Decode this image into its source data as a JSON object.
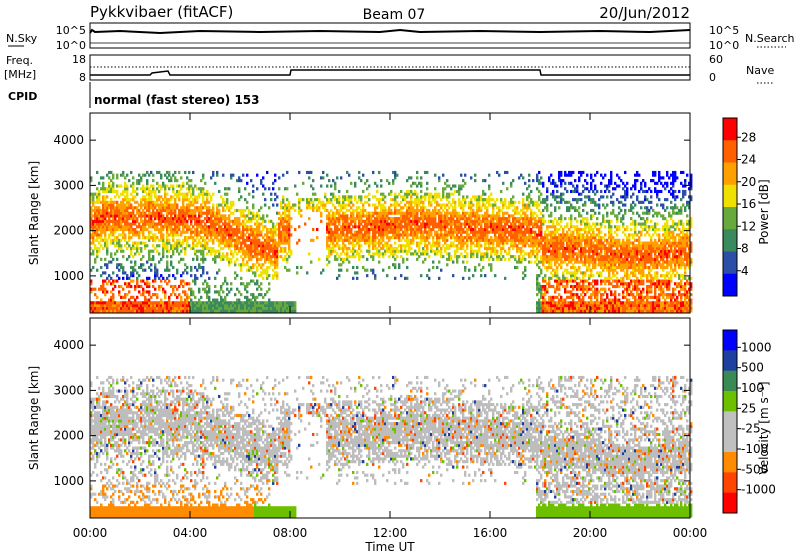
{
  "header": {
    "station": "Pykkvibaer (fitACF)",
    "beam": "Beam 07",
    "date": "20/Jun/2012"
  },
  "nsky_panel": {
    "left_label": "N.Sky",
    "left_ticks": [
      "10^5",
      "10^0"
    ],
    "right_label": "N.Search",
    "right_ticks": [
      "10^5",
      "10^0"
    ]
  },
  "freq_panel": {
    "left_label_top": "Freq.",
    "left_label_bottom": "[MHz]",
    "left_ticks": [
      "18",
      "8"
    ],
    "right_label": "Nave",
    "right_ticks": [
      "60",
      "0"
    ]
  },
  "cpid": {
    "label": "CPID",
    "text": "normal (fast stereo) 153"
  },
  "colors": {
    "power": [
      "#0000ff",
      "#2b4fa6",
      "#3b8a5e",
      "#67a93c",
      "#f0e000",
      "#ffa000",
      "#ff6000",
      "#ff0000"
    ],
    "velocity": [
      "#ff0000",
      "#ff4500",
      "#ff8c00",
      "#c0c0c0",
      "#c0c0c0",
      "#6dc000",
      "#3a8a55",
      "#1e3fa0",
      "#0000ff"
    ],
    "ground_scatter": "#bdbdbd"
  },
  "chart_data": [
    {
      "type": "heatmap",
      "title": "Power",
      "xlabel": "Time UT",
      "ylabel": "Slant Range [km]",
      "x_ticks": [
        "00:00",
        "04:00",
        "08:00",
        "12:00",
        "16:00",
        "20:00",
        "00:00"
      ],
      "xlim_hours": [
        0,
        24
      ],
      "y_ticks": [
        "4000",
        "3000",
        "2000",
        "1000"
      ],
      "ylim": [
        180,
        4600
      ],
      "colorbar_label": "Power [dB]",
      "colorbar_ticks": [
        "28",
        "24",
        "20",
        "16",
        "12",
        "8",
        "4"
      ],
      "colorbar_range": [
        0,
        30
      ]
    },
    {
      "type": "heatmap",
      "title": "Velocity",
      "xlabel": "Time UT",
      "ylabel": "Slant Range [km]",
      "x_ticks": [
        "00:00",
        "04:00",
        "08:00",
        "12:00",
        "16:00",
        "20:00",
        "00:00"
      ],
      "xlim_hours": [
        0,
        24
      ],
      "y_ticks": [
        "4000",
        "3000",
        "2000",
        "1000"
      ],
      "ylim": [
        180,
        4600
      ],
      "colorbar_label": "Velocity [m s⁻¹]",
      "colorbar_ticks": [
        "1000",
        "500",
        "100",
        "25",
        "-25",
        "-100",
        "-500",
        "-1000"
      ]
    }
  ],
  "xaxis_label": "Time UT"
}
